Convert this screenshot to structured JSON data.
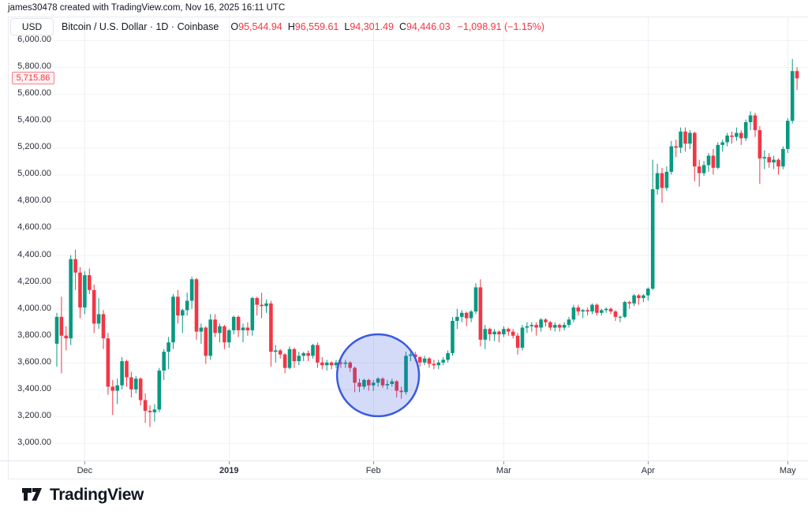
{
  "attribution": "james30478 created with TradingView.com, Nov 16, 2025 16:11 UTC",
  "header": {
    "currency_button": "USD",
    "symbol_text": "Bitcoin / U.S. Dollar · 1D · Coinbase",
    "ohlc": [
      {
        "label": "O",
        "value": "95,544.94"
      },
      {
        "label": "H",
        "value": "96,559.61"
      },
      {
        "label": "L",
        "value": "94,301.49"
      },
      {
        "label": "C",
        "value": "94,446.03"
      }
    ],
    "change": "−1,098.91 (−1.15%)"
  },
  "price_scale": {
    "tick_values": [
      6000,
      5800,
      5600,
      5400,
      5200,
      5000,
      4800,
      4600,
      4400,
      4200,
      4000,
      3800,
      3600,
      3400,
      3200,
      3000
    ],
    "tick_labels": [
      "6,000.00",
      "5,800.00",
      "5,600.00",
      "5,400.00",
      "5,200.00",
      "5,000.00",
      "4,800.00",
      "4,600.00",
      "4,400.00",
      "4,200.00",
      "4,000.00",
      "3,800.00",
      "3,600.00",
      "3,400.00",
      "3,200.00",
      "3,000.00"
    ],
    "last_price_label": "5,715.86",
    "last_price_value": 5715.86
  },
  "time_scale": {
    "ticks": [
      {
        "label": "Dec",
        "index": 6,
        "bold": false
      },
      {
        "label": "2019",
        "index": 37,
        "bold": true
      },
      {
        "label": "Feb",
        "index": 68,
        "bold": false
      },
      {
        "label": "Mar",
        "index": 96,
        "bold": false
      },
      {
        "label": "Apr",
        "index": 127,
        "bold": false
      },
      {
        "label": "May",
        "index": 157,
        "bold": false
      }
    ]
  },
  "footer": {
    "logo_text": "TradingView"
  },
  "colors": {
    "up": "#089981",
    "down": "#f23645",
    "annotation_blue": "#3a5be0",
    "label_red": "#f23645",
    "grid": "#f0f2f6",
    "grid_vertical": "#edeff4",
    "axis_line": "#e4e6eb",
    "tick_mark": "#9598a1",
    "text": "#131722"
  },
  "chart_data": {
    "type": "candlestick",
    "title": "Bitcoin / U.S. Dollar · 1D · Coinbase",
    "x_range": [
      "2018-11-25",
      "2019-05-03"
    ],
    "ylim": [
      3000,
      6000
    ],
    "y_step": 200,
    "grid": true,
    "candles_format": [
      "open",
      "high",
      "low",
      "close"
    ],
    "candles": [
      [
        3740,
        3970,
        3570,
        3940
      ],
      [
        3940,
        4090,
        3520,
        3800
      ],
      [
        3800,
        3870,
        3690,
        3780
      ],
      [
        3780,
        4400,
        3730,
        4370
      ],
      [
        4370,
        4440,
        4140,
        4270
      ],
      [
        4270,
        4310,
        3930,
        4010
      ],
      [
        4010,
        4280,
        3960,
        4250
      ],
      [
        4250,
        4300,
        4110,
        4140
      ],
      [
        4140,
        4180,
        3820,
        3890
      ],
      [
        3890,
        4080,
        3850,
        3960
      ],
      [
        3960,
        3990,
        3700,
        3780
      ],
      [
        3780,
        3820,
        3360,
        3420
      ],
      [
        3420,
        3470,
        3210,
        3390
      ],
      [
        3390,
        3480,
        3290,
        3430
      ],
      [
        3430,
        3640,
        3400,
        3610
      ],
      [
        3610,
        3620,
        3420,
        3490
      ],
      [
        3490,
        3530,
        3340,
        3400
      ],
      [
        3400,
        3500,
        3370,
        3480
      ],
      [
        3480,
        3490,
        3280,
        3320
      ],
      [
        3320,
        3370,
        3150,
        3240
      ],
      [
        3240,
        3280,
        3120,
        3230
      ],
      [
        3230,
        3290,
        3160,
        3250
      ],
      [
        3250,
        3560,
        3230,
        3540
      ],
      [
        3540,
        3700,
        3470,
        3680
      ],
      [
        3680,
        3790,
        3550,
        3750
      ],
      [
        3750,
        4110,
        3700,
        4090
      ],
      [
        4090,
        4140,
        3890,
        3950
      ],
      [
        3950,
        4000,
        3820,
        3990
      ],
      [
        3990,
        4120,
        3950,
        4060
      ],
      [
        4060,
        4240,
        4000,
        4220
      ],
      [
        4220,
        4230,
        3770,
        3830
      ],
      [
        3830,
        3890,
        3740,
        3860
      ],
      [
        3860,
        3870,
        3590,
        3650
      ],
      [
        3650,
        3960,
        3620,
        3920
      ],
      [
        3920,
        3960,
        3790,
        3820
      ],
      [
        3820,
        3890,
        3750,
        3870
      ],
      [
        3870,
        3880,
        3700,
        3750
      ],
      [
        3750,
        3850,
        3710,
        3840
      ],
      [
        3840,
        3950,
        3810,
        3940
      ],
      [
        3940,
        3950,
        3790,
        3840
      ],
      [
        3840,
        3890,
        3750,
        3860
      ],
      [
        3860,
        3900,
        3800,
        3840
      ],
      [
        3840,
        4090,
        3800,
        4080
      ],
      [
        4080,
        4090,
        3950,
        4030
      ],
      [
        4030,
        4120,
        3930,
        4020
      ],
      [
        4020,
        4070,
        3970,
        4040
      ],
      [
        4040,
        4060,
        3570,
        3680
      ],
      [
        3680,
        3730,
        3600,
        3690
      ],
      [
        3690,
        3700,
        3630,
        3660
      ],
      [
        3660,
        3670,
        3520,
        3560
      ],
      [
        3560,
        3720,
        3550,
        3700
      ],
      [
        3700,
        3710,
        3560,
        3610
      ],
      [
        3610,
        3680,
        3580,
        3650
      ],
      [
        3650,
        3680,
        3610,
        3670
      ],
      [
        3670,
        3690,
        3610,
        3650
      ],
      [
        3650,
        3740,
        3630,
        3730
      ],
      [
        3730,
        3750,
        3560,
        3600
      ],
      [
        3600,
        3640,
        3550,
        3580
      ],
      [
        3580,
        3620,
        3540,
        3600
      ],
      [
        3600,
        3610,
        3550,
        3580
      ],
      [
        3580,
        3620,
        3560,
        3600
      ],
      [
        3600,
        3620,
        3560,
        3590
      ],
      [
        3590,
        3620,
        3560,
        3600
      ],
      [
        3600,
        3610,
        3530,
        3560
      ],
      [
        3560,
        3570,
        3380,
        3450
      ],
      [
        3450,
        3480,
        3380,
        3420
      ],
      [
        3420,
        3480,
        3400,
        3470
      ],
      [
        3470,
        3480,
        3390,
        3430
      ],
      [
        3430,
        3470,
        3390,
        3450
      ],
      [
        3450,
        3490,
        3420,
        3480
      ],
      [
        3480,
        3490,
        3410,
        3430
      ],
      [
        3430,
        3470,
        3400,
        3440
      ],
      [
        3440,
        3480,
        3420,
        3460
      ],
      [
        3460,
        3470,
        3340,
        3390
      ],
      [
        3390,
        3420,
        3330,
        3380
      ],
      [
        3380,
        3680,
        3360,
        3650
      ],
      [
        3650,
        3690,
        3610,
        3660
      ],
      [
        3660,
        3680,
        3610,
        3640
      ],
      [
        3640,
        3650,
        3570,
        3600
      ],
      [
        3600,
        3650,
        3580,
        3630
      ],
      [
        3630,
        3640,
        3560,
        3590
      ],
      [
        3590,
        3620,
        3550,
        3580
      ],
      [
        3580,
        3620,
        3550,
        3600
      ],
      [
        3600,
        3640,
        3580,
        3620
      ],
      [
        3620,
        3690,
        3600,
        3670
      ],
      [
        3670,
        3940,
        3650,
        3910
      ],
      [
        3910,
        4000,
        3850,
        3940
      ],
      [
        3940,
        3990,
        3900,
        3970
      ],
      [
        3970,
        3980,
        3870,
        3930
      ],
      [
        3930,
        3990,
        3900,
        3980
      ],
      [
        3980,
        4190,
        3960,
        4160
      ],
      [
        4160,
        4220,
        3720,
        3770
      ],
      [
        3770,
        3880,
        3700,
        3850
      ],
      [
        3850,
        3860,
        3760,
        3810
      ],
      [
        3810,
        3850,
        3760,
        3830
      ],
      [
        3830,
        3840,
        3750,
        3810
      ],
      [
        3810,
        3870,
        3790,
        3850
      ],
      [
        3850,
        3860,
        3800,
        3830
      ],
      [
        3830,
        3850,
        3780,
        3800
      ],
      [
        3800,
        3820,
        3660,
        3710
      ],
      [
        3710,
        3880,
        3690,
        3860
      ],
      [
        3860,
        3900,
        3820,
        3870
      ],
      [
        3870,
        3900,
        3830,
        3880
      ],
      [
        3880,
        3900,
        3800,
        3860
      ],
      [
        3860,
        3930,
        3830,
        3920
      ],
      [
        3920,
        3930,
        3870,
        3900
      ],
      [
        3900,
        3910,
        3840,
        3860
      ],
      [
        3860,
        3900,
        3830,
        3880
      ],
      [
        3880,
        3890,
        3830,
        3860
      ],
      [
        3860,
        3900,
        3840,
        3880
      ],
      [
        3880,
        3940,
        3860,
        3920
      ],
      [
        3920,
        4030,
        3900,
        4010
      ],
      [
        4010,
        4030,
        3950,
        3980
      ],
      [
        3980,
        4000,
        3930,
        3990
      ],
      [
        3990,
        4010,
        3950,
        3980
      ],
      [
        3980,
        4040,
        3960,
        4030
      ],
      [
        4030,
        4040,
        3950,
        3970
      ],
      [
        3970,
        4000,
        3950,
        3990
      ],
      [
        3990,
        4010,
        3970,
        4000
      ],
      [
        4000,
        4010,
        3960,
        3980
      ],
      [
        3980,
        3990,
        3910,
        3940
      ],
      [
        3940,
        3950,
        3900,
        3940
      ],
      [
        3940,
        4060,
        3930,
        4050
      ],
      [
        4050,
        4060,
        4000,
        4040
      ],
      [
        4040,
        4110,
        4020,
        4100
      ],
      [
        4100,
        4110,
        4030,
        4080
      ],
      [
        4080,
        4110,
        4050,
        4100
      ],
      [
        4100,
        4160,
        4060,
        4150
      ],
      [
        4150,
        5110,
        4140,
        4890
      ],
      [
        4890,
        5080,
        4850,
        5010
      ],
      [
        5010,
        5050,
        4790,
        4900
      ],
      [
        4900,
        5060,
        4880,
        5020
      ],
      [
        5020,
        5250,
        5000,
        5210
      ],
      [
        5210,
        5260,
        5130,
        5200
      ],
      [
        5200,
        5350,
        5160,
        5320
      ],
      [
        5320,
        5350,
        5170,
        5230
      ],
      [
        5230,
        5330,
        5190,
        5310
      ],
      [
        5310,
        5320,
        4950,
        5060
      ],
      [
        5060,
        5110,
        4910,
        5010
      ],
      [
        5010,
        5100,
        4990,
        5070
      ],
      [
        5070,
        5160,
        5020,
        5140
      ],
      [
        5140,
        5190,
        5000,
        5050
      ],
      [
        5050,
        5240,
        5040,
        5220
      ],
      [
        5220,
        5260,
        5170,
        5240
      ],
      [
        5240,
        5310,
        5210,
        5290
      ],
      [
        5290,
        5320,
        5230,
        5280
      ],
      [
        5280,
        5350,
        5250,
        5310
      ],
      [
        5310,
        5330,
        5220,
        5270
      ],
      [
        5270,
        5410,
        5250,
        5390
      ],
      [
        5390,
        5470,
        5330,
        5440
      ],
      [
        5440,
        5460,
        5280,
        5330
      ],
      [
        5330,
        5360,
        4930,
        5120
      ],
      [
        5120,
        5180,
        5040,
        5130
      ],
      [
        5130,
        5160,
        5050,
        5090
      ],
      [
        5090,
        5140,
        5040,
        5110
      ],
      [
        5110,
        5120,
        5000,
        5060
      ],
      [
        5060,
        5210,
        5040,
        5190
      ],
      [
        5190,
        5420,
        5160,
        5400
      ],
      [
        5400,
        5860,
        5380,
        5770
      ],
      [
        5770,
        5800,
        5630,
        5716
      ]
    ],
    "annotation_circle": {
      "center_index": 69,
      "center_price": 3505,
      "radius_price": 305
    }
  }
}
